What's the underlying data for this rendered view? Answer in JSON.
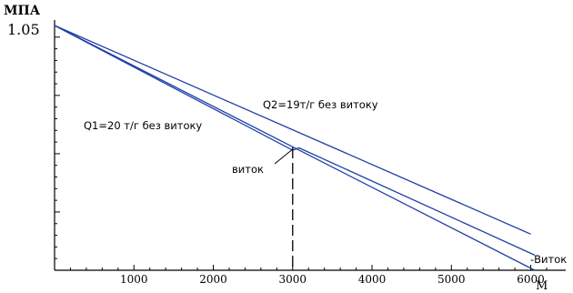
{
  "chart_data": {
    "type": "line",
    "ylabel": "МПА",
    "ymax_label": "1.05",
    "xlabel": "М",
    "xlim": [
      0,
      6200
    ],
    "ylim": [
      0,
      1.05
    ],
    "xticks": [
      1000,
      2000,
      3000,
      4000,
      5000,
      6000
    ],
    "grid": false,
    "series": [
      {
        "name": "Q2=19т/г без витоку",
        "color": "#1f3fa8",
        "x": [
          0,
          6000
        ],
        "y": [
          1.05,
          0.155
        ]
      },
      {
        "name": "Q1=20 т/г без витоку",
        "color": "#1f3fa8",
        "x": [
          0,
          6050
        ],
        "y": [
          1.05,
          0.0
        ]
      },
      {
        "name": "Витоку",
        "color": "#1f3fa8",
        "x": [
          0,
          3000,
          3080,
          6050
        ],
        "y": [
          1.05,
          0.515,
          0.525,
          0.065
        ]
      }
    ],
    "annotations": {
      "q2_label": "Q2=19т/г без витоку",
      "q1_label": "Q1=20 т/г без витоку",
      "leak_label": "виток",
      "leak_x": 3000,
      "end_label": "-Виток"
    }
  }
}
